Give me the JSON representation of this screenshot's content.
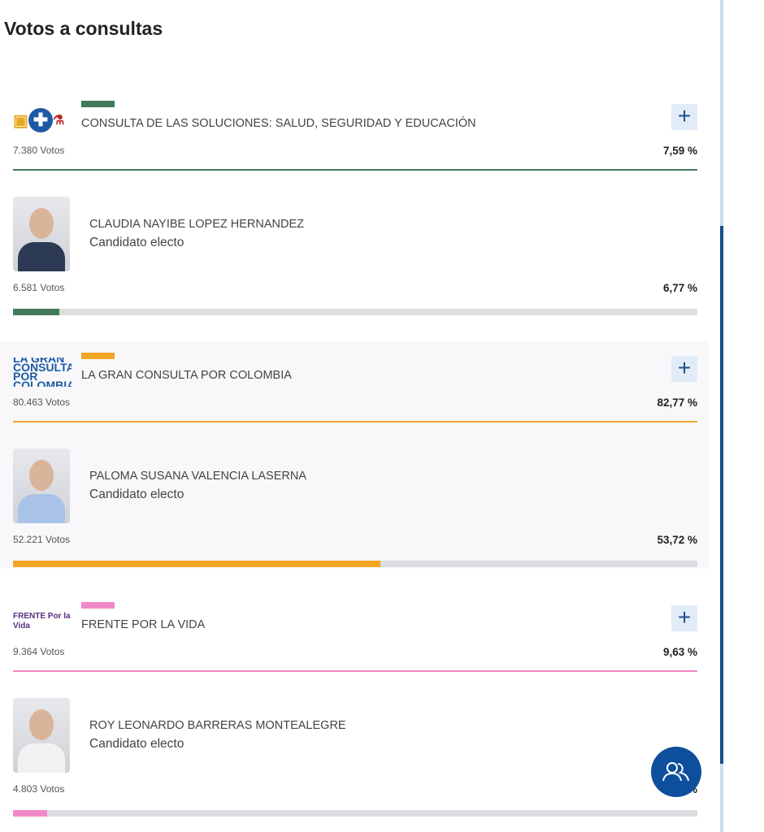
{
  "title": "Votos a consultas",
  "consultas": [
    {
      "name": "CONSULTA DE LAS SOLUCIONES: SALUD, SEGURIDAD Y EDUCACIÓN",
      "votes": "7.380 Votos",
      "pct": "7,59 %",
      "color": "#3f7a5a",
      "logo": "soluciones-logo",
      "expand": "+",
      "candidate": {
        "name": "CLAUDIA NAYIBE LOPEZ HERNANDEZ",
        "status": "Candidato electo",
        "votes": "6.581 Votos",
        "pct": "6,77 %",
        "fill": 6.77
      }
    },
    {
      "name": "LA GRAN CONSULTA POR COLOMBIA",
      "votes": "80.463 Votos",
      "pct": "82,77 %",
      "color": "#f0a623",
      "logo": "LA GRAN CONSULTA POR COLOMBIA",
      "expand": "+",
      "candidate": {
        "name": "PALOMA SUSANA VALENCIA LASERNA",
        "status": "Candidato electo",
        "votes": "52.221 Votos",
        "pct": "53,72 %",
        "fill": 53.72
      }
    },
    {
      "name": "FRENTE POR LA VIDA",
      "votes": "9.364 Votos",
      "pct": "9,63 %",
      "color": "#f08ac6",
      "logo": "FRENTE Por la Vida",
      "expand": "+",
      "candidate": {
        "name": "ROY LEONARDO BARRERAS MONTEALEGRE",
        "status": "Candidato electo",
        "votes": "4.803 Votos",
        "pct": "4,94 %",
        "fill": 4.94
      }
    }
  ],
  "fab_icon": "users-icon"
}
